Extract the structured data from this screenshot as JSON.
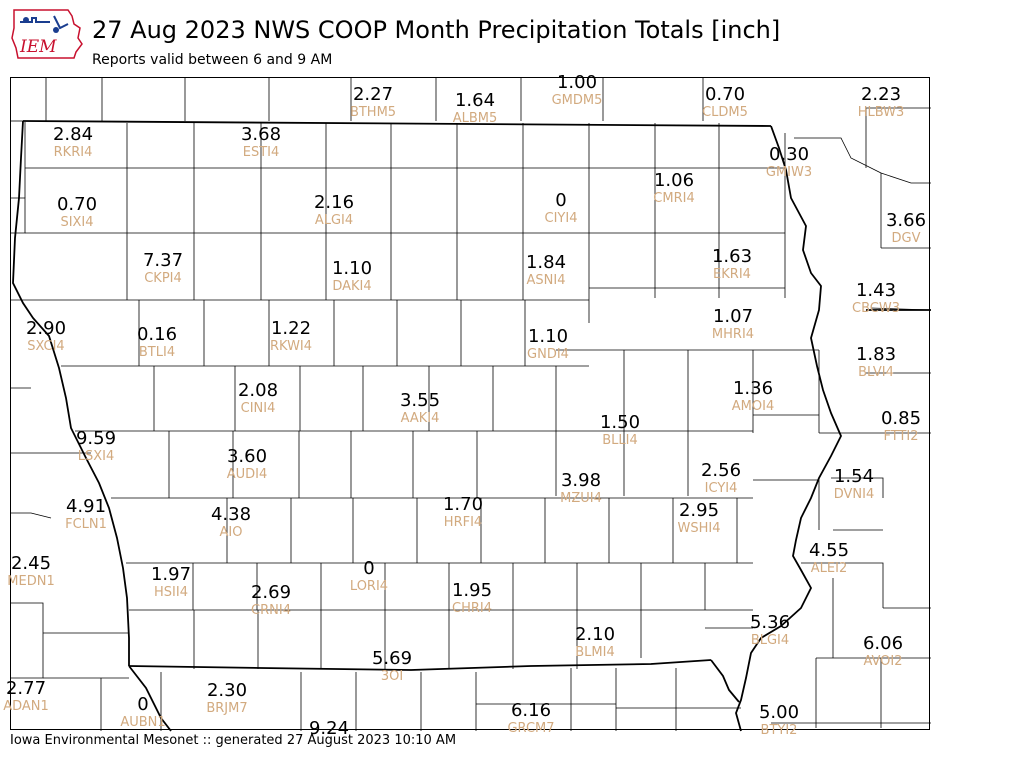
{
  "header": {
    "title": "27 Aug 2023 NWS COOP Month Precipitation Totals [inch]",
    "subtitle": "Reports valid between 6 and 9 AM",
    "logo_text": "IEM"
  },
  "footer": {
    "text": "Iowa Environmental Mesonet :: generated 27 August 2023 10:10 AM"
  },
  "colors": {
    "value": "#000000",
    "station_id": "#d2aa7f",
    "state_border": "#000000",
    "county_border": "#000000",
    "logo": "#c8102e"
  },
  "stations": [
    {
      "id": "BTHM5",
      "value": "2.27"
    },
    {
      "id": "ALBM5",
      "value": "1.64"
    },
    {
      "id": "GMDM5",
      "value": "1.00"
    },
    {
      "id": "CLDM5",
      "value": "0.70"
    },
    {
      "id": "HLBW3",
      "value": "2.23"
    },
    {
      "id": "RKRI4",
      "value": "2.84"
    },
    {
      "id": "ESTI4",
      "value": "3.68"
    },
    {
      "id": "GMIW3",
      "value": "0.30"
    },
    {
      "id": "SIXI4",
      "value": "0.70"
    },
    {
      "id": "ALGI4",
      "value": "2.16"
    },
    {
      "id": "CIYI4",
      "value": "0"
    },
    {
      "id": "CMRI4",
      "value": "1.06"
    },
    {
      "id": "DGV",
      "value": "3.66"
    },
    {
      "id": "CKPI4",
      "value": "7.37"
    },
    {
      "id": "DAKI4",
      "value": "1.10"
    },
    {
      "id": "ASNI4",
      "value": "1.84"
    },
    {
      "id": "EKRI4",
      "value": "1.63"
    },
    {
      "id": "CBCW3",
      "value": "1.43"
    },
    {
      "id": "SXCI4",
      "value": "2.90"
    },
    {
      "id": "BTLI4",
      "value": "0.16"
    },
    {
      "id": "RKWI4",
      "value": "1.22"
    },
    {
      "id": "GNDI4",
      "value": "1.10"
    },
    {
      "id": "MHRI4",
      "value": "1.07"
    },
    {
      "id": "BLVI4",
      "value": "1.83"
    },
    {
      "id": "CINI4",
      "value": "2.08"
    },
    {
      "id": "AAKI4",
      "value": "3.55"
    },
    {
      "id": "AMOI4",
      "value": "1.36"
    },
    {
      "id": "BLLI4",
      "value": "1.50"
    },
    {
      "id": "FTTI2",
      "value": "0.85"
    },
    {
      "id": "LSXI4",
      "value": "9.59"
    },
    {
      "id": "AUDI4",
      "value": "3.60"
    },
    {
      "id": "ICYI4",
      "value": "2.56"
    },
    {
      "id": "DVNI4",
      "value": "1.54"
    },
    {
      "id": "MZUI4",
      "value": "3.98"
    },
    {
      "id": "FCLN1",
      "value": "4.91"
    },
    {
      "id": "AIO",
      "value": "4.38"
    },
    {
      "id": "HRFI4",
      "value": "1.70"
    },
    {
      "id": "WSHI4",
      "value": "2.95"
    },
    {
      "id": "ALEI2",
      "value": "4.55"
    },
    {
      "id": "MEDN1",
      "value": "2.45"
    },
    {
      "id": "HSII4",
      "value": "1.97"
    },
    {
      "id": "CRNI4",
      "value": "2.69"
    },
    {
      "id": "LORI4",
      "value": "0"
    },
    {
      "id": "CHRI4",
      "value": "1.95"
    },
    {
      "id": "BLMI4",
      "value": "2.10"
    },
    {
      "id": "BLGI4",
      "value": "5.36"
    },
    {
      "id": "AVOI2",
      "value": "6.06"
    },
    {
      "id": "3OI",
      "value": "5.69"
    },
    {
      "id": "ADAN1",
      "value": "2.77"
    },
    {
      "id": "AUBN1",
      "value": "0"
    },
    {
      "id": "BRJM7",
      "value": "2.30"
    },
    {
      "id": "GRCM7",
      "value": "6.16"
    },
    {
      "id": "BTYI2",
      "value": "5.00"
    },
    {
      "id": "",
      "value": "9.24"
    }
  ]
}
